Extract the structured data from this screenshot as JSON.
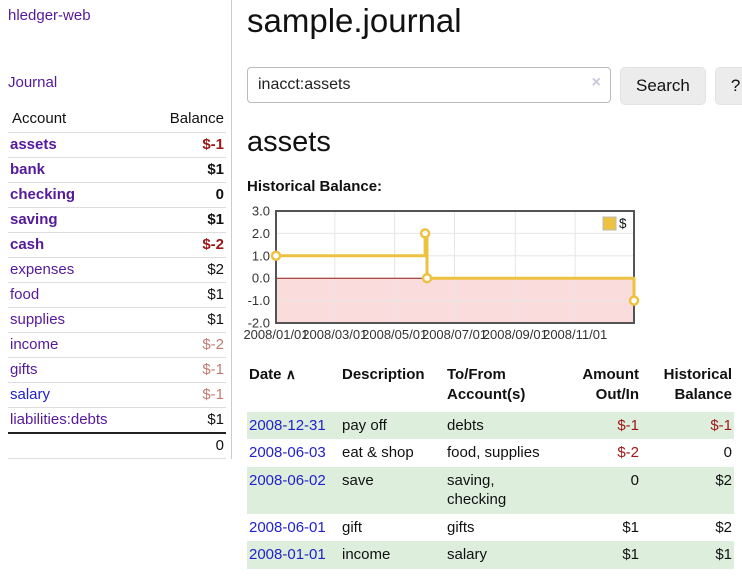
{
  "colors": {
    "link_purple": "#551a9b",
    "link_blue": "#2222cc",
    "negative_red": "#9e1616",
    "negative_light_red": "#c47c72",
    "row_stripe_green": "#ddeedd",
    "chart_series_yellow": "#edc240",
    "chart_negative_fill": "#fadcdc",
    "chart_zero_line": "#8b1a1a"
  },
  "sidebar": {
    "brand": "hledger-web",
    "journal_link": "Journal",
    "accounts": {
      "headers": {
        "account": "Account",
        "balance": "Balance"
      },
      "rows": [
        {
          "name": "assets",
          "balance": "$-1"
        },
        {
          "name": "bank",
          "balance": "$1"
        },
        {
          "name": "checking",
          "balance": "0"
        },
        {
          "name": "saving",
          "balance": "$1"
        },
        {
          "name": "cash",
          "balance": "$-2"
        },
        {
          "name": "expenses",
          "balance": "$2"
        },
        {
          "name": "food",
          "balance": "$1"
        },
        {
          "name": "supplies",
          "balance": "$1"
        },
        {
          "name": "income",
          "balance": "$-2"
        },
        {
          "name": "gifts",
          "balance": "$-1"
        },
        {
          "name": "salary",
          "balance": "$-1"
        },
        {
          "name": "liabilities:debts",
          "balance": "$1"
        }
      ],
      "total": "0"
    }
  },
  "header": {
    "title": "sample.journal"
  },
  "search": {
    "value": "inacct:assets",
    "clear_icon": "×",
    "button_label": "Search",
    "help_label": "?"
  },
  "account_page": {
    "heading": "assets",
    "chart_title": "Historical Balance:"
  },
  "chart_data": {
    "type": "line",
    "style": "steps",
    "title": "Historical Balance",
    "series": [
      {
        "name": "$",
        "color": "#edc240",
        "points": [
          [
            "2008-01-01",
            1
          ],
          [
            "2008-06-01",
            2
          ],
          [
            "2008-06-03",
            0
          ],
          [
            "2008-12-31",
            -1
          ]
        ]
      }
    ],
    "xlim": [
      "2008-01-01",
      "2008-12-31"
    ],
    "ylim": [
      -2,
      3
    ],
    "x_ticks": [
      "2008/01/01",
      "2008/03/01",
      "2008/05/01",
      "2008/07/01",
      "2008/09/01",
      "2008/11/01"
    ],
    "y_ticks": [
      "3.0",
      "2.0",
      "1.0",
      "0.0",
      "-1.0",
      "-2.0"
    ],
    "legend": {
      "label": "$",
      "position": "top-right"
    },
    "grid": true,
    "negative_region_fill": "#fadcdc",
    "zero_line_color": "#8b1a1a"
  },
  "register": {
    "headers": {
      "date": "Date",
      "description": "Description",
      "accounts": "To/From Account(s)",
      "amount": "Amount Out/In",
      "balance": "Historical Balance"
    },
    "sort_icon": "∧",
    "rows": [
      {
        "date": "2008-12-31",
        "description": "pay off",
        "accounts": "debts",
        "amount": "$-1",
        "balance": "$-1"
      },
      {
        "date": "2008-06-03",
        "description": "eat & shop",
        "accounts": "food, supplies",
        "amount": "$-2",
        "balance": "0"
      },
      {
        "date": "2008-06-02",
        "description": "save",
        "accounts": "saving,\nchecking",
        "amount": "0",
        "balance": "$2"
      },
      {
        "date": "2008-06-01",
        "description": "gift",
        "accounts": "gifts",
        "amount": "$1",
        "balance": "$2"
      },
      {
        "date": "2008-01-01",
        "description": "income",
        "accounts": "salary",
        "amount": "$1",
        "balance": "$1"
      }
    ]
  }
}
